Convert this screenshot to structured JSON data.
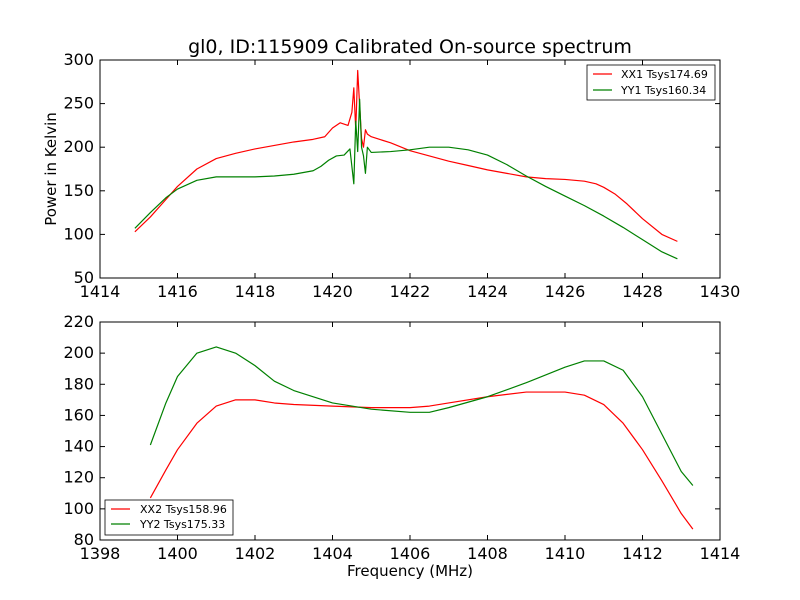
{
  "title": "gl0, ID:115909 Calibrated On-source spectrum",
  "colors": {
    "red": "#ff0000",
    "green": "#008000"
  },
  "chart_data": [
    {
      "type": "line",
      "title": "gl0, ID:115909 Calibrated On-source spectrum",
      "xlabel": "",
      "ylabel": "Power in Kelvin",
      "xlim": [
        1414,
        1430
      ],
      "ylim": [
        50,
        300
      ],
      "xticks": [
        1414,
        1416,
        1418,
        1420,
        1422,
        1424,
        1426,
        1428,
        1430
      ],
      "yticks": [
        50,
        100,
        150,
        200,
        250,
        300
      ],
      "grid": false,
      "legend_position": "top-right",
      "series": [
        {
          "name": "XX1 Tsys174.69",
          "color": "#ff0000",
          "x": [
            1414.9,
            1415.3,
            1415.7,
            1416.0,
            1416.5,
            1417.0,
            1417.5,
            1418.0,
            1418.5,
            1419.0,
            1419.5,
            1419.8,
            1420.0,
            1420.2,
            1420.4,
            1420.5,
            1420.55,
            1420.6,
            1420.65,
            1420.7,
            1420.75,
            1420.8,
            1420.85,
            1420.9,
            1421.0,
            1421.5,
            1422.0,
            1422.5,
            1423.0,
            1423.5,
            1424.0,
            1424.5,
            1425.0,
            1425.5,
            1426.0,
            1426.5,
            1426.8,
            1427.0,
            1427.3,
            1427.6,
            1428.0,
            1428.5,
            1428.9
          ],
          "y": [
            103,
            120,
            140,
            155,
            175,
            187,
            193,
            198,
            202,
            206,
            209,
            212,
            222,
            228,
            225,
            240,
            268,
            220,
            288,
            248,
            210,
            200,
            220,
            215,
            212,
            205,
            196,
            190,
            184,
            179,
            174,
            170,
            166,
            164,
            163,
            161,
            158,
            154,
            146,
            135,
            118,
            100,
            92
          ]
        },
        {
          "name": "YY1 Tsys160.34",
          "color": "#008000",
          "x": [
            1414.9,
            1415.3,
            1415.7,
            1416.0,
            1416.5,
            1417.0,
            1417.5,
            1418.0,
            1418.5,
            1419.0,
            1419.5,
            1419.7,
            1419.9,
            1420.1,
            1420.3,
            1420.45,
            1420.55,
            1420.6,
            1420.65,
            1420.7,
            1420.75,
            1420.8,
            1420.85,
            1420.9,
            1421.0,
            1421.5,
            1422.0,
            1422.5,
            1423.0,
            1423.5,
            1424.0,
            1424.5,
            1425.0,
            1425.5,
            1426.0,
            1426.5,
            1427.0,
            1427.5,
            1428.0,
            1428.5,
            1428.9
          ],
          "y": [
            107,
            125,
            142,
            152,
            162,
            166,
            166,
            166,
            167,
            169,
            173,
            178,
            185,
            190,
            191,
            198,
            158,
            230,
            195,
            255,
            200,
            190,
            170,
            200,
            194,
            195,
            197,
            200,
            200,
            197,
            191,
            180,
            167,
            155,
            144,
            133,
            121,
            108,
            94,
            80,
            72
          ]
        }
      ]
    },
    {
      "type": "line",
      "title": "",
      "xlabel": "Frequency (MHz)",
      "ylabel": "",
      "xlim": [
        1398,
        1414
      ],
      "ylim": [
        80,
        220
      ],
      "xticks": [
        1398,
        1400,
        1402,
        1404,
        1406,
        1408,
        1410,
        1412,
        1414
      ],
      "yticks": [
        80,
        100,
        120,
        140,
        160,
        180,
        200,
        220
      ],
      "grid": false,
      "legend_position": "bottom-left",
      "series": [
        {
          "name": "XX2 Tsys158.96",
          "color": "#ff0000",
          "x": [
            1399.3,
            1399.7,
            1400.0,
            1400.5,
            1401.0,
            1401.5,
            1402.0,
            1402.5,
            1403.0,
            1404.0,
            1405.0,
            1406.0,
            1406.5,
            1407.0,
            1408.0,
            1409.0,
            1410.0,
            1410.5,
            1411.0,
            1411.5,
            1412.0,
            1412.5,
            1413.0,
            1413.3
          ],
          "y": [
            107,
            125,
            138,
            155,
            166,
            170,
            170,
            168,
            167,
            166,
            165,
            165,
            166,
            168,
            172,
            175,
            175,
            173,
            167,
            155,
            138,
            118,
            97,
            87
          ]
        },
        {
          "name": "YY2 Tsys175.33",
          "color": "#008000",
          "x": [
            1399.3,
            1399.7,
            1400.0,
            1400.5,
            1401.0,
            1401.5,
            1402.0,
            1402.5,
            1403.0,
            1404.0,
            1405.0,
            1406.0,
            1406.5,
            1407.0,
            1408.0,
            1409.0,
            1410.0,
            1410.5,
            1411.0,
            1411.5,
            1412.0,
            1412.5,
            1413.0,
            1413.3
          ],
          "y": [
            141,
            168,
            185,
            200,
            204,
            200,
            192,
            182,
            176,
            168,
            164,
            162,
            162,
            165,
            172,
            181,
            191,
            195,
            195,
            189,
            172,
            148,
            124,
            115
          ]
        }
      ]
    }
  ]
}
